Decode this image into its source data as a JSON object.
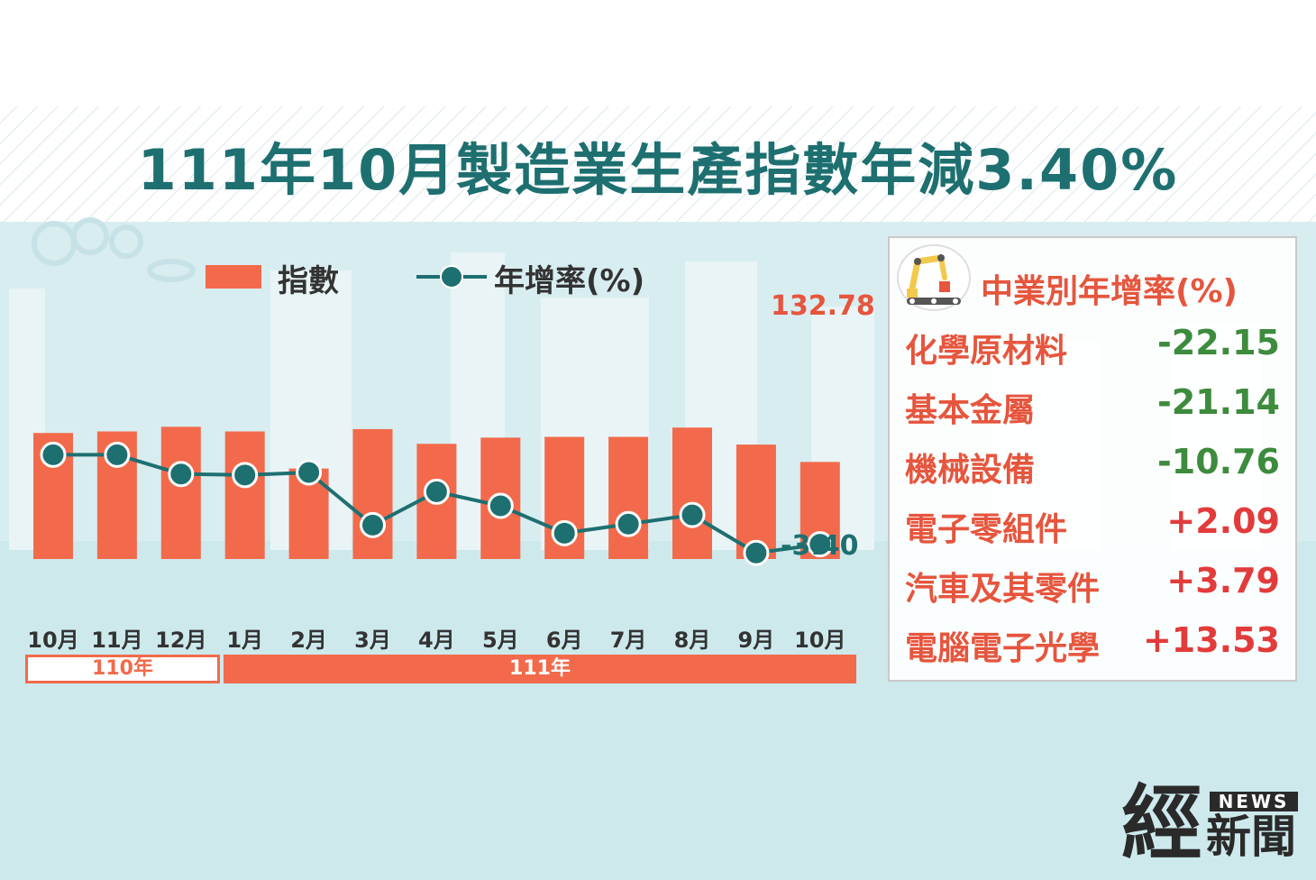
{
  "title": "111年10月製造業生產指數年減3.40%",
  "legend": {
    "bar_label": "指數",
    "line_label": "年增率(%)"
  },
  "chart_data": {
    "type": "bar",
    "categories": [
      "10月",
      "11月",
      "12月",
      "1月",
      "2月",
      "3月",
      "4月",
      "5月",
      "6月",
      "7月",
      "8月",
      "9月",
      "10月"
    ],
    "series": [
      {
        "name": "指數",
        "type": "bar",
        "values": [
          151.5,
          152.5,
          155.5,
          152.5,
          128.5,
          154.0,
          144.5,
          148.5,
          149.0,
          149.0,
          155.0,
          144.0,
          132.78
        ]
      },
      {
        "name": "年增率(%)",
        "type": "line",
        "values": [
          14.3,
          14.3,
          10.5,
          10.3,
          10.8,
          0.4,
          7.0,
          4.2,
          -1.2,
          0.6,
          2.4,
          -5.1,
          -3.4
        ]
      }
    ],
    "year_groups": [
      {
        "label": "110年",
        "from": 0,
        "to": 2
      },
      {
        "label": "111年",
        "from": 3,
        "to": 12
      }
    ],
    "annotations": {
      "last_index_label": "132.78",
      "last_rate_label": "-3.40"
    },
    "legend_position": "top-left",
    "grid": false
  },
  "panel": {
    "title": "中業別年增率(%)",
    "icon": "robot-arm-icon",
    "items": [
      {
        "name": "化學原材料",
        "value": "-22.15",
        "color": "#3d8b3d"
      },
      {
        "name": "基本金屬",
        "value": "-21.14",
        "color": "#3d8b3d"
      },
      {
        "name": "機械設備",
        "value": "-10.76",
        "color": "#3d8b3d"
      },
      {
        "name": "電子零組件",
        "value": "+2.09",
        "color": "#e23b3b"
      },
      {
        "name": "汽車及其零件",
        "value": "+3.79",
        "color": "#e23b3b"
      },
      {
        "name": "電腦電子光學",
        "value": "+13.53",
        "color": "#e23b3b"
      }
    ]
  },
  "logo": {
    "main": "經",
    "sub": "新聞",
    "badge": "NEWS"
  },
  "colors": {
    "bar": "#f26a4b",
    "line": "#1e6f70",
    "title": "#1e6f70",
    "accent": "#e6553d"
  }
}
